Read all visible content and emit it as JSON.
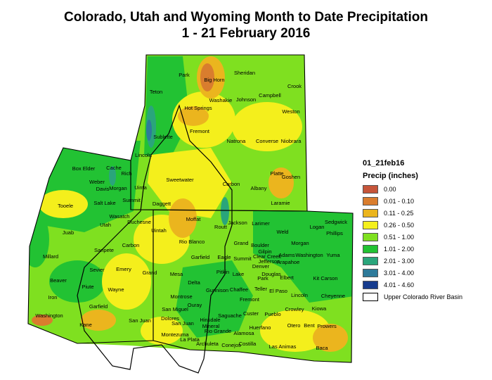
{
  "title": {
    "line1": "Colorado, Utah and Wyoming Month to Date  Precipitation",
    "line2": "1 - 21 February 2016"
  },
  "legend": {
    "title": "01_21feb16",
    "subtitle": "Precip (inches)",
    "classes": [
      {
        "label": "0.00",
        "color": "#c6553a"
      },
      {
        "label": "0.01 - 0.10",
        "color": "#d97d2e"
      },
      {
        "label": "0.11 - 0.25",
        "color": "#ebb51e"
      },
      {
        "label": "0.26 - 0.50",
        "color": "#f4ef1c"
      },
      {
        "label": "0.51 - 1.00",
        "color": "#7fe020"
      },
      {
        "label": "1.01 - 2.00",
        "color": "#22c233"
      },
      {
        "label": "2.01 - 3.00",
        "color": "#2aa57b"
      },
      {
        "label": "3.01 - 4.00",
        "color": "#2e7a9a"
      },
      {
        "label": "4.01 - 4.60",
        "color": "#173c8e"
      }
    ],
    "basin_label": "Upper Colorado River Basin"
  },
  "counties": {
    "wyoming": [
      "Park",
      "Sheridan",
      "Big Horn",
      "Crook",
      "Teton",
      "Washakie",
      "Johnson",
      "Campbell",
      "Hot Springs",
      "Weston",
      "Fremont",
      "Sublette",
      "Natrona",
      "Converse",
      "Niobrara",
      "Lincoln",
      "Platte",
      "Goshen",
      "Sweetwater",
      "Carbon",
      "Albany",
      "Uinta",
      "Laramie"
    ],
    "utah": [
      "Box Elder",
      "Cache",
      "Rich",
      "Weber",
      "Davis",
      "Morgan",
      "Tooele",
      "Salt Lake",
      "Summit",
      "Daggett",
      "Wasatch",
      "Utah",
      "Duchesne",
      "Uintah",
      "Juab",
      "Sanpete",
      "Carbon",
      "Millard",
      "Sevier",
      "Emery",
      "Grand",
      "Beaver",
      "Piute",
      "Wayne",
      "Iron",
      "Garfield",
      "Washington",
      "Kane",
      "San Juan"
    ],
    "colorado": [
      "Jackson",
      "Larimer",
      "Logan",
      "Sedgwick",
      "Phillips",
      "Moffat",
      "Routt",
      "Weld",
      "Morgan",
      "Rio Blanco",
      "Grand",
      "Boulder",
      "Gilpin",
      "Clear Creek",
      "Adams",
      "Washington",
      "Yuma",
      "Jefferson",
      "Arapahoe",
      "Garfield",
      "Eagle",
      "Summit",
      "Denver",
      "Douglas",
      "Elbert",
      "Mesa",
      "Pitkin",
      "Lake",
      "Park",
      "Kit Carson",
      "Delta",
      "Gunnison",
      "Chaffee",
      "Teller",
      "El Paso",
      "Lincoln",
      "Cheyenne",
      "Montrose",
      "Fremont",
      "Kiowa",
      "San Miguel",
      "Ouray",
      "Crowley",
      "Hinsdale",
      "Saguache",
      "Custer",
      "Pueblo",
      "Dolores",
      "San Juan",
      "Mineral",
      "Otero",
      "Bent",
      "Prowers",
      "Montezuma",
      "Rio Grande",
      "Alamosa",
      "Huerfano",
      "La Plata",
      "Archuleta",
      "Conejos",
      "Costilla",
      "Las Animas",
      "Baca"
    ]
  }
}
